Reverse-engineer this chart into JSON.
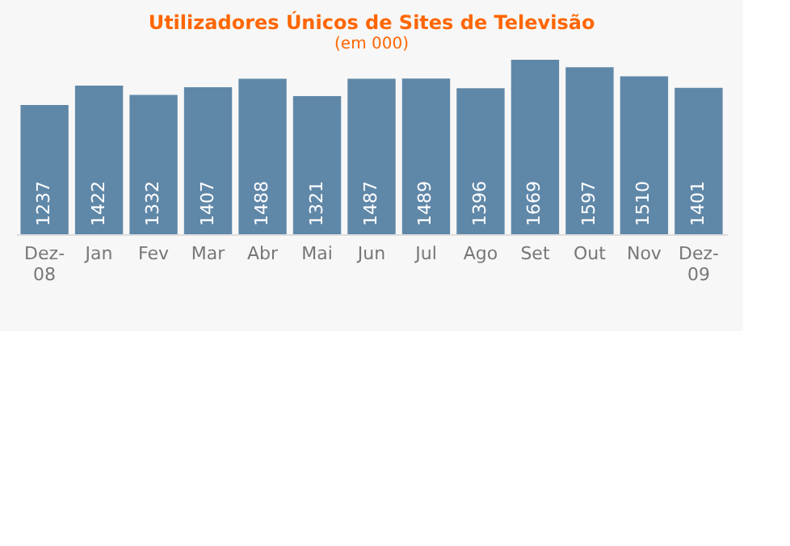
{
  "chart_data": {
    "type": "bar",
    "title": "Utilizadores Únicos de Sites de Televisão",
    "subtitle": "(em 000)",
    "categories": [
      "Dez-08",
      "Jan",
      "Fev",
      "Mar",
      "Abr",
      "Mai",
      "Jun",
      "Jul",
      "Ago",
      "Set",
      "Out",
      "Nov",
      "Dez-09"
    ],
    "values": [
      1237,
      1422,
      1332,
      1407,
      1488,
      1321,
      1487,
      1489,
      1396,
      1669,
      1597,
      1510,
      1401
    ],
    "color": "#5f87a8",
    "data_labels": true,
    "grid": false,
    "tick_labels": "x"
  }
}
